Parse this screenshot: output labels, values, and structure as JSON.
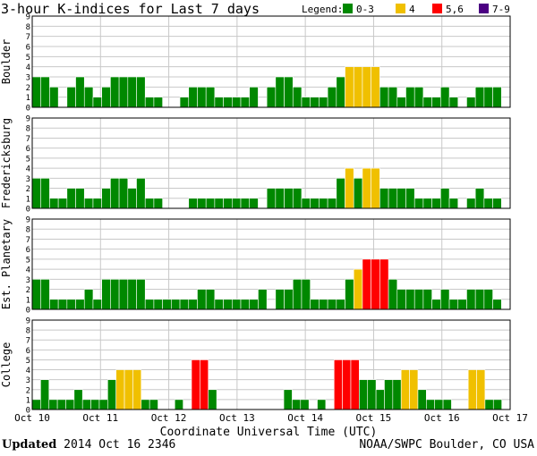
{
  "chart_data": {
    "type": "bar",
    "title": "3-hour K-indices for Last 7 days",
    "xlabel": "Coordinate Universal Time (UTC)",
    "x_ticks": [
      "Oct 10",
      "Oct 11",
      "Oct 12",
      "Oct 13",
      "Oct 14",
      "Oct 15",
      "Oct 16",
      "Oct 17"
    ],
    "y_ticks": [
      "0",
      "1",
      "2",
      "3",
      "4",
      "5",
      "6",
      "7",
      "8",
      "9"
    ],
    "ylim": [
      0,
      9
    ],
    "grid": true,
    "legend_label": "Legend:",
    "legend": [
      {
        "label": "0-3",
        "color": "#008800"
      },
      {
        "label": "4",
        "color": "#f0c000"
      },
      {
        "label": "5,6",
        "color": "#ff0000"
      },
      {
        "label": "7-9",
        "color": "#4b0082"
      }
    ],
    "series": [
      {
        "name": "Boulder",
        "values": [
          3,
          3,
          2,
          0,
          2,
          3,
          2,
          1,
          2,
          3,
          3,
          3,
          3,
          1,
          1,
          0,
          0,
          1,
          2,
          2,
          2,
          1,
          1,
          1,
          1,
          2,
          0,
          2,
          3,
          3,
          2,
          1,
          1,
          1,
          2,
          3,
          4,
          4,
          4,
          4,
          2,
          2,
          1,
          2,
          2,
          1,
          1,
          2,
          1,
          0,
          1,
          2,
          2,
          2,
          0
        ]
      },
      {
        "name": "Fredericksburg",
        "values": [
          3,
          3,
          1,
          1,
          2,
          2,
          1,
          1,
          2,
          3,
          3,
          2,
          3,
          1,
          1,
          0,
          0,
          0,
          1,
          1,
          1,
          1,
          1,
          1,
          1,
          1,
          0,
          2,
          2,
          2,
          2,
          1,
          1,
          1,
          1,
          3,
          4,
          3,
          4,
          4,
          2,
          2,
          2,
          2,
          1,
          1,
          1,
          2,
          1,
          0,
          1,
          2,
          1,
          1,
          0
        ]
      },
      {
        "name": "Est. Planetary",
        "values": [
          3,
          3,
          1,
          1,
          1,
          1,
          2,
          1,
          3,
          3,
          3,
          3,
          3,
          1,
          1,
          1,
          1,
          1,
          1,
          2,
          2,
          1,
          1,
          1,
          1,
          1,
          2,
          0,
          2,
          2,
          3,
          3,
          1,
          1,
          1,
          1,
          3,
          4,
          5,
          5,
          5,
          3,
          2,
          2,
          2,
          2,
          1,
          2,
          1,
          1,
          2,
          2,
          2,
          1,
          0
        ]
      },
      {
        "name": "College",
        "values": [
          1,
          3,
          1,
          1,
          1,
          2,
          1,
          1,
          1,
          3,
          4,
          4,
          4,
          1,
          1,
          0,
          0,
          1,
          0,
          5,
          5,
          2,
          0,
          0,
          0,
          0,
          0,
          0,
          0,
          0,
          2,
          1,
          1,
          0,
          1,
          0,
          5,
          5,
          5,
          3,
          3,
          2,
          3,
          3,
          4,
          4,
          2,
          1,
          1,
          1,
          0,
          0,
          4,
          4,
          1,
          1,
          0
        ]
      }
    ]
  },
  "footer": {
    "updated_label": "Updated",
    "updated_time": "2014 Oct 16 2346",
    "credit": "NOAA/SWPC Boulder, CO USA"
  }
}
